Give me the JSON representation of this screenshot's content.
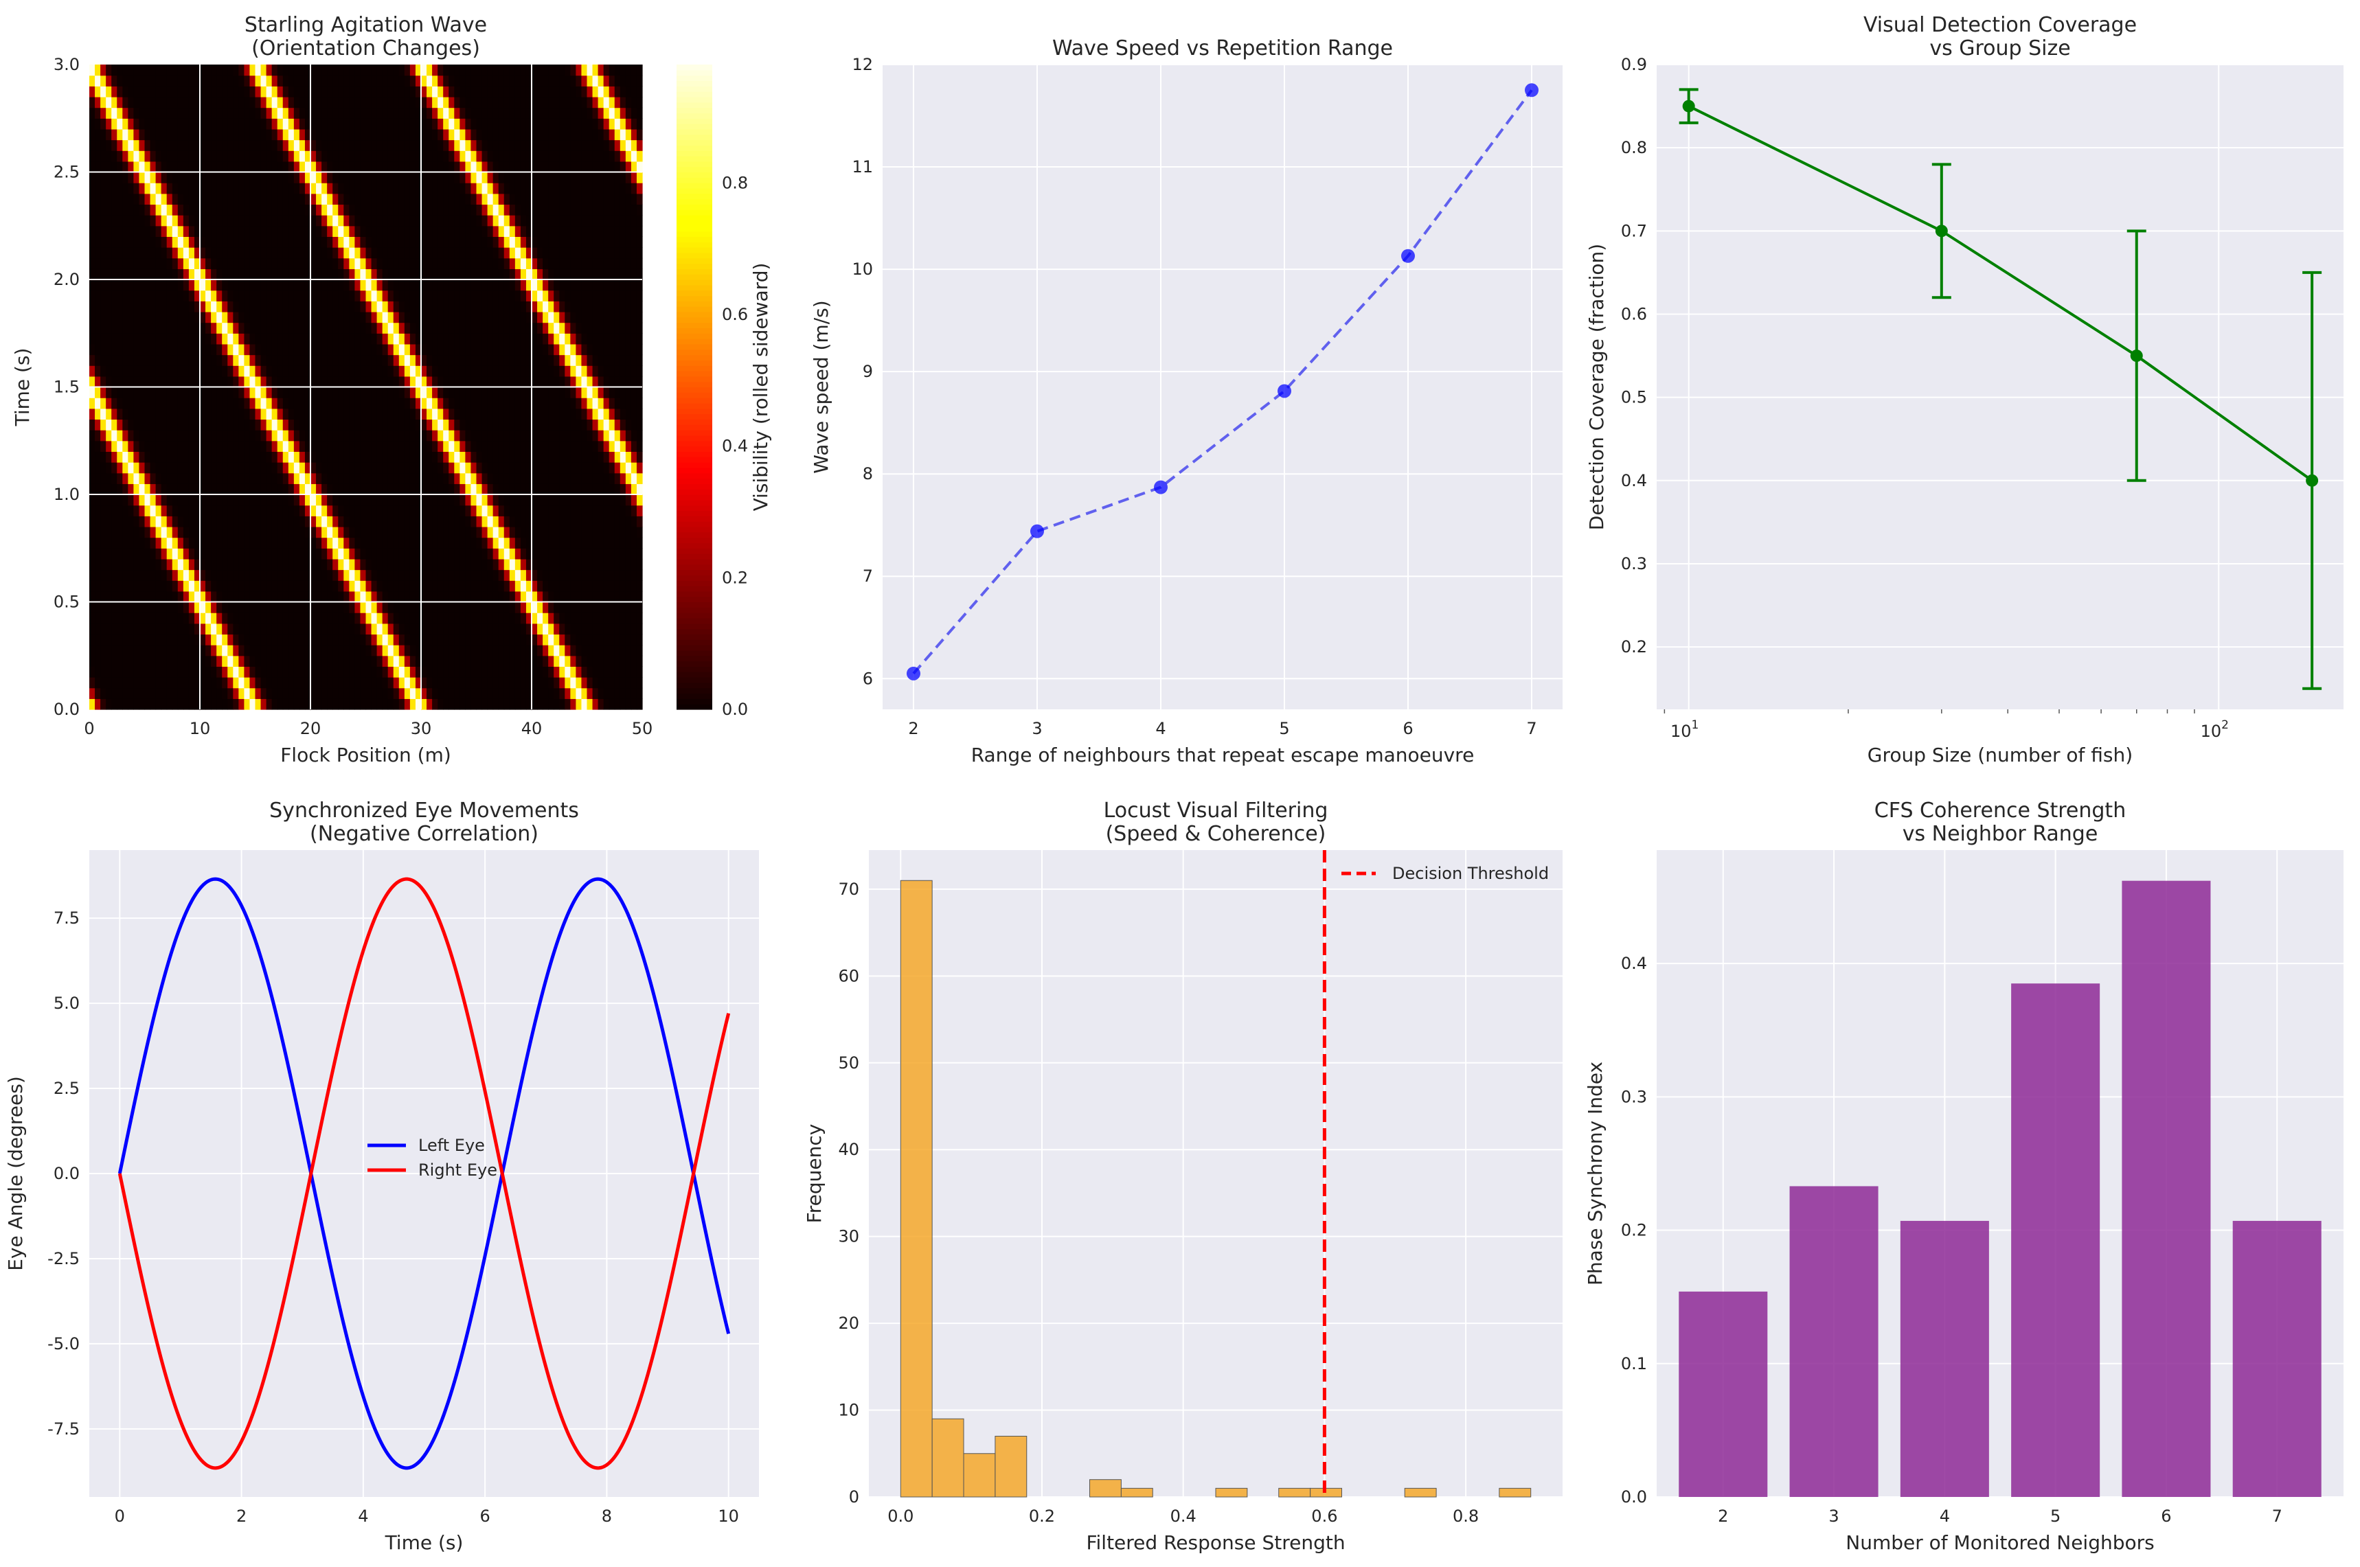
{
  "colors": {
    "axes_bg": "#EAEAF2",
    "grid": "#ffffff",
    "blue": "#0000ff",
    "red": "#ff0000",
    "green": "#008000",
    "orange": "#f5a623",
    "purple": "#8e2a96",
    "dashed_blue": "#6060ee",
    "threshold": "#ff0000"
  },
  "chart_data": [
    {
      "id": "heatmap",
      "type": "heatmap",
      "title": "Starling Agitation Wave\n(Orientation Changes)",
      "xlabel": "Flock Position (m)",
      "ylabel": "Time (s)",
      "xlim": [
        0,
        50
      ],
      "ylim": [
        0,
        3
      ],
      "xticks": [
        0,
        10,
        20,
        30,
        40,
        50
      ],
      "yticks": [
        0.0,
        0.5,
        1.0,
        1.5,
        2.0,
        2.5,
        3.0
      ],
      "colormap": "hot",
      "colorbar_label": "Visibility (rolled sideward)",
      "colorbar_range": [
        0.0,
        0.98
      ],
      "colorbar_ticks": [
        0.0,
        0.2,
        0.4,
        0.6,
        0.8
      ],
      "wave": {
        "speed_m_per_s": 10,
        "period_m": 15,
        "band_width_m": 2
      }
    },
    {
      "id": "speed",
      "type": "line",
      "title": "Wave Speed vs Repetition Range",
      "xlabel": "Range of neighbours that repeat escape manoeuvre",
      "ylabel": "Wave speed (m/s)",
      "x": [
        2,
        3,
        4,
        5,
        6,
        7
      ],
      "y": [
        6.05,
        7.44,
        7.87,
        8.81,
        10.13,
        11.75
      ],
      "xlim": [
        1.75,
        7.25
      ],
      "ylim": [
        5.7,
        12.0
      ],
      "xticks": [
        2,
        3,
        4,
        5,
        6,
        7
      ],
      "yticks": [
        6,
        7,
        8,
        9,
        10,
        11,
        12
      ],
      "style": "dashed-markers"
    },
    {
      "id": "coverage",
      "type": "line",
      "title": "Visual Detection Coverage\nvs Group Size",
      "xlabel": "Group Size (number of fish)",
      "ylabel": "Detection Coverage (fraction)",
      "xscale": "log",
      "x": [
        10,
        30,
        70,
        150
      ],
      "y": [
        0.85,
        0.7,
        0.55,
        0.4
      ],
      "yerr": [
        0.02,
        0.08,
        0.15,
        0.25
      ],
      "xlim": [
        8.7,
        172
      ],
      "ylim": [
        0.125,
        0.9
      ],
      "xticks": [
        {
          "value": 10,
          "label": "10",
          "exp": "1"
        },
        {
          "value": 100,
          "label": "10",
          "exp": "2"
        }
      ],
      "yticks": [
        0.2,
        0.3,
        0.4,
        0.5,
        0.6,
        0.7,
        0.8,
        0.9
      ]
    },
    {
      "id": "eyes",
      "type": "line",
      "title": "Synchronized Eye Movements\n(Negative Correlation)",
      "xlabel": "Time (s)",
      "ylabel": "Eye Angle (degrees)",
      "xlim": [
        -0.5,
        10.5
      ],
      "ylim": [
        -9.5,
        9.5
      ],
      "xticks": [
        0,
        2,
        4,
        6,
        8,
        10
      ],
      "yticks": [
        -7.5,
        -5.0,
        -2.5,
        0.0,
        2.5,
        5.0,
        7.5
      ],
      "series": [
        {
          "name": "Left Eye",
          "amplitude": 8.65,
          "sign": 1
        },
        {
          "name": "Right Eye",
          "amplitude": 8.65,
          "sign": -1
        }
      ],
      "x_range": [
        0,
        10
      ],
      "legend_position": "center"
    },
    {
      "id": "locust",
      "type": "bar",
      "title": "Locust Visual Filtering\n(Speed & Coherence)",
      "xlabel": "Filtered Response Strength",
      "ylabel": "Frequency",
      "bin_edges": [
        0.0,
        0.0446,
        0.0892,
        0.1338,
        0.1784,
        0.223,
        0.2676,
        0.3122,
        0.3568,
        0.4014,
        0.446,
        0.4906,
        0.5352,
        0.5798,
        0.6244,
        0.669,
        0.7136,
        0.7582,
        0.8028,
        0.8474,
        0.892
      ],
      "counts": [
        71,
        9,
        5,
        7,
        0,
        0,
        2,
        1,
        0,
        0,
        1,
        0,
        1,
        1,
        0,
        0,
        1,
        0,
        0,
        1
      ],
      "threshold": 0.6,
      "threshold_label": "Decision Threshold",
      "xlim": [
        -0.045,
        0.937
      ],
      "ylim": [
        0,
        74.5
      ],
      "xticks": [
        0.0,
        0.2,
        0.4,
        0.6,
        0.8
      ],
      "yticks": [
        0,
        10,
        20,
        30,
        40,
        50,
        60,
        70
      ],
      "legend_position": "top-right"
    },
    {
      "id": "cfs",
      "type": "bar",
      "title": "CFS Coherence Strength\nvs Neighbor Range",
      "xlabel": "Number of Monitored Neighbors",
      "ylabel": "Phase Synchrony Index",
      "categories": [
        "2",
        "3",
        "4",
        "5",
        "6",
        "7"
      ],
      "values": [
        0.154,
        0.233,
        0.207,
        0.385,
        0.462,
        0.207
      ],
      "ylim": [
        0,
        0.485
      ],
      "yticks": [
        0.0,
        0.1,
        0.2,
        0.3,
        0.4
      ]
    }
  ]
}
